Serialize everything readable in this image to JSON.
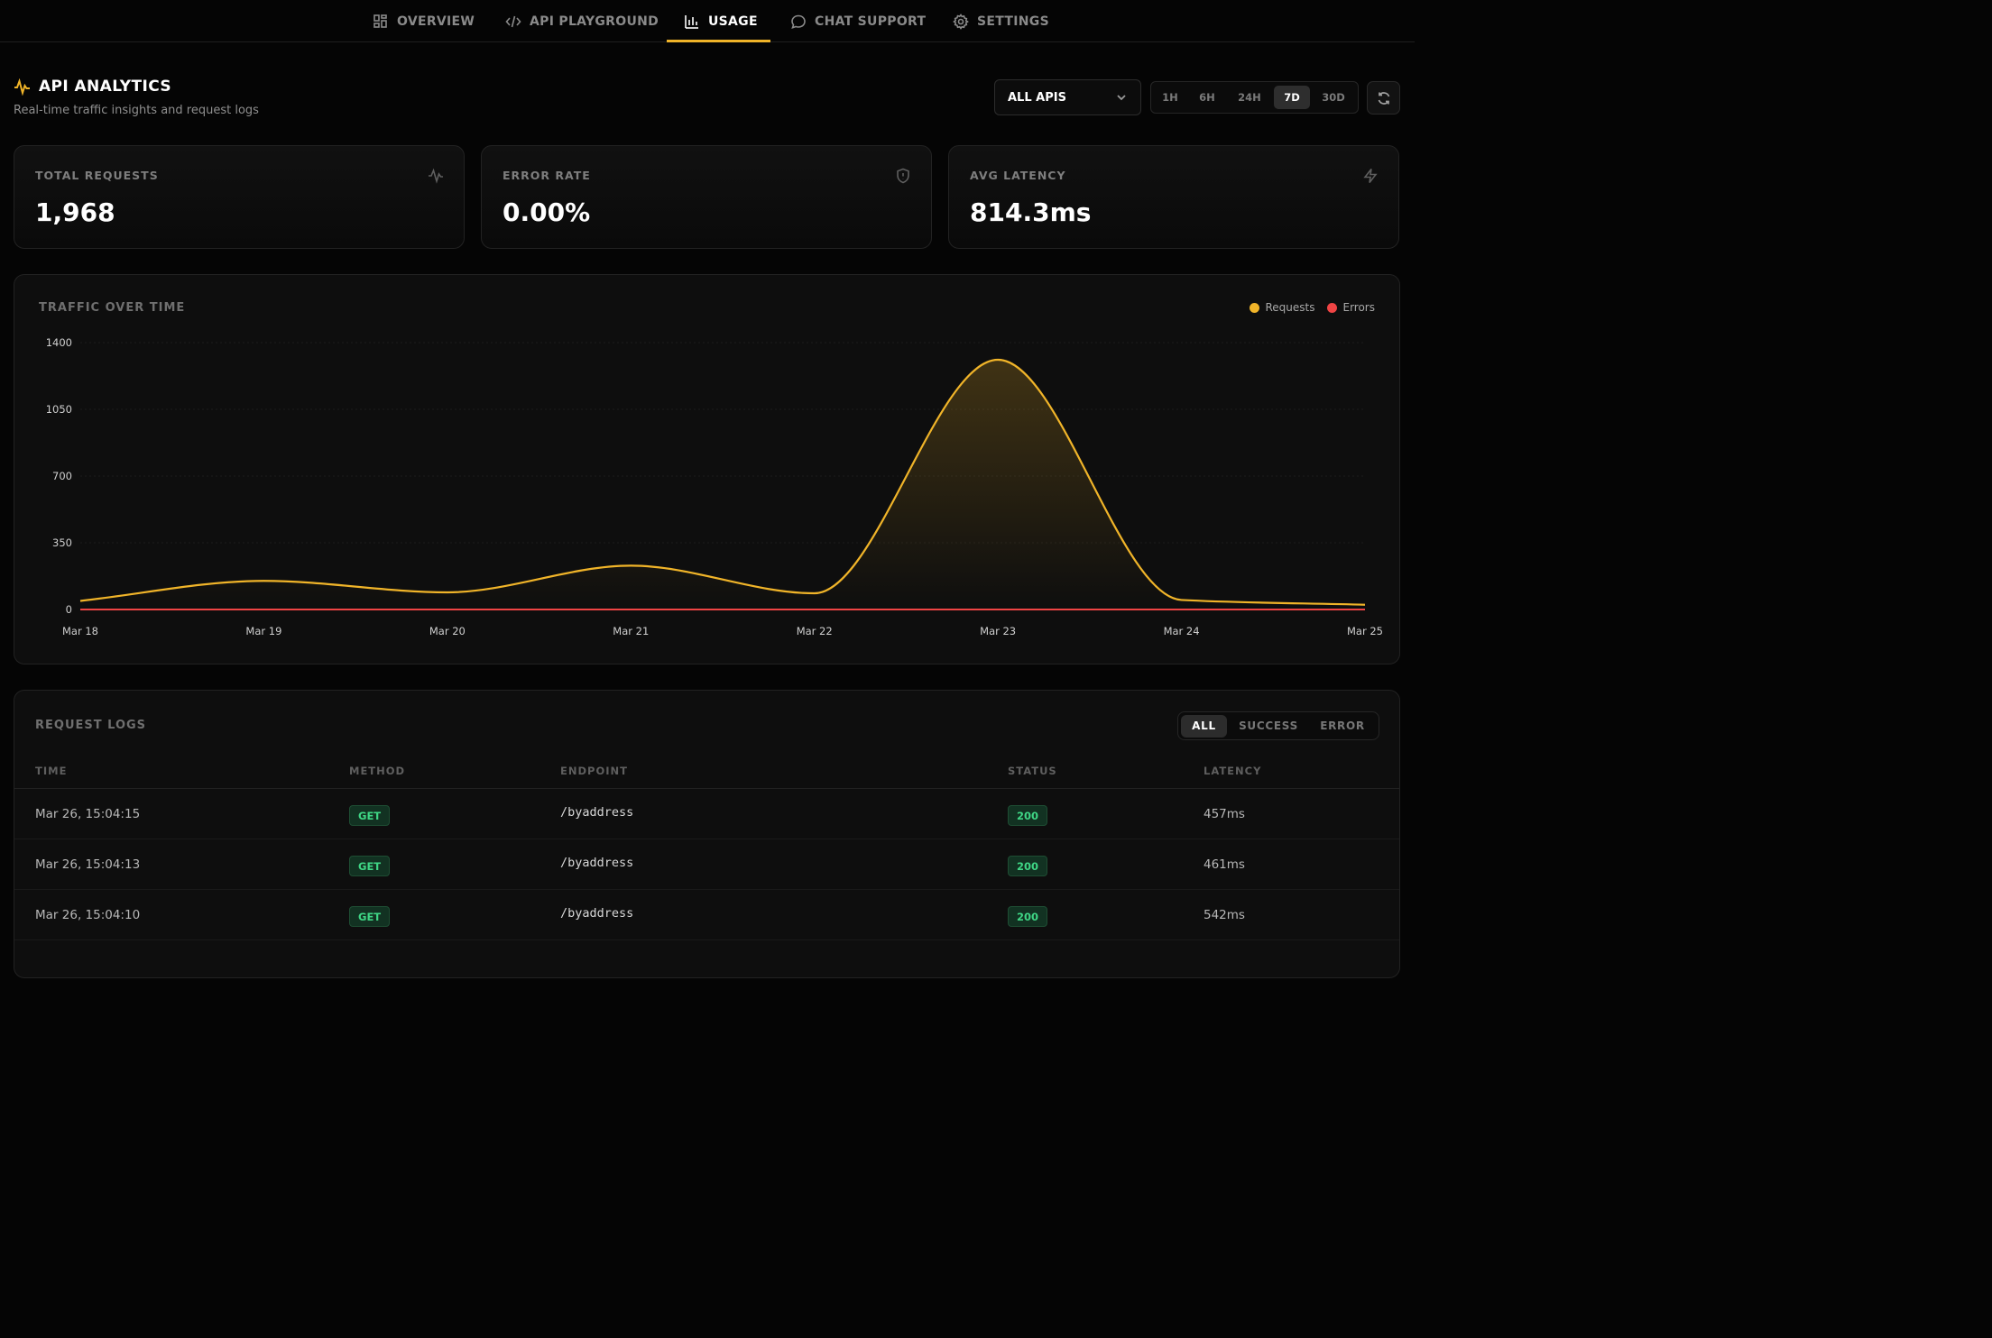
{
  "nav": {
    "items": [
      {
        "label": "OVERVIEW",
        "icon": "grid-icon"
      },
      {
        "label": "API PLAYGROUND",
        "icon": "code-icon"
      },
      {
        "label": "USAGE",
        "icon": "bar-chart-icon"
      },
      {
        "label": "CHAT SUPPORT",
        "icon": "message-icon"
      },
      {
        "label": "SETTINGS",
        "icon": "gear-icon"
      }
    ],
    "active": "USAGE",
    "accent_color": "#f0b429"
  },
  "header": {
    "title": "API ANALYTICS",
    "subtitle": "Real-time traffic insights and request logs",
    "api_select": "ALL APIS",
    "ranges": [
      "1H",
      "6H",
      "24H",
      "7D",
      "30D"
    ],
    "active_range": "7D"
  },
  "stats": [
    {
      "label": "TOTAL REQUESTS",
      "value": "1,968",
      "icon": "activity-icon"
    },
    {
      "label": "ERROR RATE",
      "value": "0.00%",
      "icon": "shield-icon"
    },
    {
      "label": "AVG LATENCY",
      "value": "814.3ms",
      "icon": "zap-icon"
    }
  ],
  "chart": {
    "title": "TRAFFIC OVER TIME",
    "legend": [
      {
        "name": "Requests",
        "color": "#f0b429"
      },
      {
        "name": "Errors",
        "color": "#ef4444"
      }
    ]
  },
  "chart_data": {
    "type": "area",
    "x": [
      "Mar 18",
      "Mar 19",
      "Mar 20",
      "Mar 21",
      "Mar 22",
      "Mar 23",
      "Mar 24",
      "Mar 25"
    ],
    "series": [
      {
        "name": "Requests",
        "values": [
          45,
          150,
          90,
          230,
          85,
          1310,
          50,
          25
        ]
      },
      {
        "name": "Errors",
        "values": [
          0,
          0,
          0,
          0,
          0,
          0,
          0,
          0
        ]
      }
    ],
    "yticks": [
      0,
      350,
      700,
      1050,
      1400
    ],
    "ylim": [
      0,
      1400
    ],
    "grid": true,
    "legend_position": "top-right"
  },
  "logs": {
    "title": "REQUEST LOGS",
    "filters": [
      "ALL",
      "SUCCESS",
      "ERROR"
    ],
    "active_filter": "ALL",
    "columns": [
      "TIME",
      "METHOD",
      "ENDPOINT",
      "STATUS",
      "LATENCY"
    ],
    "rows": [
      {
        "time": "Mar 26, 15:04:15",
        "method": "GET",
        "endpoint": "/byaddress",
        "status": "200",
        "latency": "457ms"
      },
      {
        "time": "Mar 26, 15:04:13",
        "method": "GET",
        "endpoint": "/byaddress",
        "status": "200",
        "latency": "461ms"
      },
      {
        "time": "Mar 26, 15:04:10",
        "method": "GET",
        "endpoint": "/byaddress",
        "status": "200",
        "latency": "542ms"
      }
    ]
  }
}
